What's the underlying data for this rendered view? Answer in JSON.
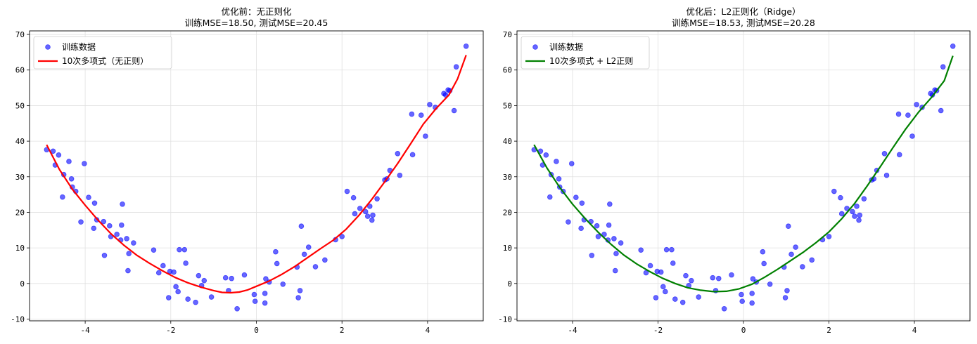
{
  "chart_data": [
    {
      "type": "scatter",
      "title": "优化前：无正则化",
      "subtitle": "训练MSE=18.50, 测试MSE=20.45",
      "xlabel": "",
      "ylabel": "",
      "xlim": [
        -5.3,
        5.3
      ],
      "ylim": [
        -10.5,
        71
      ],
      "xticks": [
        -4,
        -2,
        0,
        2,
        4
      ],
      "yticks": [
        -10,
        0,
        10,
        20,
        30,
        40,
        50,
        60,
        70
      ],
      "grid": true,
      "legend_position": "top-left",
      "series": [
        {
          "name": "训练数据",
          "kind": "scatter",
          "color": "#0000ff",
          "points": [
            [
              -4.9,
              37.6
            ],
            [
              -4.75,
              37.2
            ],
            [
              -4.7,
              33.3
            ],
            [
              -4.62,
              36.1
            ],
            [
              -4.53,
              24.3
            ],
            [
              -4.5,
              30.6
            ],
            [
              -4.38,
              34.3
            ],
            [
              -4.32,
              29.4
            ],
            [
              -4.3,
              27.1
            ],
            [
              -4.22,
              25.9
            ],
            [
              -4.1,
              17.3
            ],
            [
              -4.02,
              33.7
            ],
            [
              -3.92,
              24.2
            ],
            [
              -3.8,
              15.5
            ],
            [
              -3.78,
              22.6
            ],
            [
              -3.73,
              17.9
            ],
            [
              -3.57,
              17.4
            ],
            [
              -3.55,
              7.9
            ],
            [
              -3.43,
              16.2
            ],
            [
              -3.4,
              13.2
            ],
            [
              -3.26,
              13.8
            ],
            [
              -3.17,
              12.2
            ],
            [
              -3.15,
              16.4
            ],
            [
              -3.13,
              22.3
            ],
            [
              -3.03,
              12.6
            ],
            [
              -3.0,
              3.6
            ],
            [
              -2.98,
              8.4
            ],
            [
              -2.87,
              11.4
            ],
            [
              -2.4,
              9.4
            ],
            [
              -2.28,
              3.0
            ],
            [
              -2.18,
              5.0
            ],
            [
              -2.05,
              -4.0
            ],
            [
              -2.02,
              3.4
            ],
            [
              -1.93,
              3.2
            ],
            [
              -1.88,
              -0.9
            ],
            [
              -1.83,
              -2.3
            ],
            [
              -1.8,
              9.5
            ],
            [
              -1.68,
              9.5
            ],
            [
              -1.65,
              5.7
            ],
            [
              -1.6,
              -4.4
            ],
            [
              -1.42,
              -5.3
            ],
            [
              -1.35,
              2.2
            ],
            [
              -1.28,
              -0.6
            ],
            [
              -1.22,
              0.8
            ],
            [
              -1.05,
              -3.8
            ],
            [
              -0.72,
              1.6
            ],
            [
              -0.65,
              -2.0
            ],
            [
              -0.58,
              1.4
            ],
            [
              -0.45,
              -7.1
            ],
            [
              -0.28,
              2.4
            ],
            [
              -0.05,
              -3.1
            ],
            [
              -0.03,
              -5.0
            ],
            [
              0.2,
              -5.5
            ],
            [
              0.2,
              -2.8
            ],
            [
              0.22,
              1.3
            ],
            [
              0.3,
              0.4
            ],
            [
              0.45,
              8.9
            ],
            [
              0.48,
              5.6
            ],
            [
              0.62,
              -0.2
            ],
            [
              0.95,
              4.6
            ],
            [
              0.98,
              -4.0
            ],
            [
              1.02,
              -2.0
            ],
            [
              1.05,
              16.1
            ],
            [
              1.12,
              8.2
            ],
            [
              1.22,
              10.2
            ],
            [
              1.38,
              4.7
            ],
            [
              1.6,
              6.6
            ],
            [
              1.85,
              12.3
            ],
            [
              2.0,
              13.2
            ],
            [
              2.12,
              25.9
            ],
            [
              2.27,
              24.1
            ],
            [
              2.3,
              19.6
            ],
            [
              2.42,
              21.1
            ],
            [
              2.55,
              20.2
            ],
            [
              2.6,
              18.9
            ],
            [
              2.65,
              21.7
            ],
            [
              2.7,
              17.8
            ],
            [
              2.72,
              19.2
            ],
            [
              2.82,
              23.8
            ],
            [
              3.0,
              29.1
            ],
            [
              3.05,
              29.4
            ],
            [
              3.12,
              31.8
            ],
            [
              3.3,
              36.5
            ],
            [
              3.35,
              30.4
            ],
            [
              3.63,
              47.6
            ],
            [
              3.65,
              36.2
            ],
            [
              3.85,
              47.3
            ],
            [
              3.95,
              41.4
            ],
            [
              4.05,
              50.3
            ],
            [
              4.18,
              49.5
            ],
            [
              4.38,
              53.4
            ],
            [
              4.42,
              53.0
            ],
            [
              4.48,
              54.4
            ],
            [
              4.52,
              54.2
            ],
            [
              4.62,
              48.6
            ],
            [
              4.67,
              60.9
            ],
            [
              4.9,
              66.7
            ]
          ]
        },
        {
          "name": "10次多项式（无正则）",
          "kind": "line",
          "color": "#ff0000",
          "points": [
            [
              -4.9,
              39.0
            ],
            [
              -4.6,
              32.0
            ],
            [
              -4.3,
              26.5
            ],
            [
              -4.0,
              22.0
            ],
            [
              -3.7,
              17.8
            ],
            [
              -3.4,
              14.0
            ],
            [
              -3.1,
              10.8
            ],
            [
              -2.8,
              8.0
            ],
            [
              -2.5,
              5.7
            ],
            [
              -2.2,
              3.6
            ],
            [
              -1.9,
              1.7
            ],
            [
              -1.6,
              0.2
            ],
            [
              -1.3,
              -1.0
            ],
            [
              -1.0,
              -2.0
            ],
            [
              -0.8,
              -2.5
            ],
            [
              -0.6,
              -2.6
            ],
            [
              -0.4,
              -2.4
            ],
            [
              -0.2,
              -1.8
            ],
            [
              0.0,
              -0.8
            ],
            [
              0.3,
              0.7
            ],
            [
              0.6,
              2.6
            ],
            [
              0.9,
              4.8
            ],
            [
              1.2,
              7.3
            ],
            [
              1.5,
              9.8
            ],
            [
              1.8,
              12.2
            ],
            [
              2.1,
              15.3
            ],
            [
              2.4,
              19.2
            ],
            [
              2.7,
              23.7
            ],
            [
              3.0,
              28.6
            ],
            [
              3.3,
              33.7
            ],
            [
              3.6,
              39.2
            ],
            [
              3.9,
              44.8
            ],
            [
              4.2,
              49.2
            ],
            [
              4.5,
              53.0
            ],
            [
              4.7,
              57.5
            ],
            [
              4.9,
              64.2
            ]
          ]
        }
      ]
    },
    {
      "type": "scatter",
      "title": "优化后：L2正则化（Ridge）",
      "subtitle": "训练MSE=18.53, 测试MSE=20.28",
      "xlabel": "",
      "ylabel": "",
      "xlim": [
        -5.3,
        5.3
      ],
      "ylim": [
        -10.5,
        71
      ],
      "xticks": [
        -4,
        -2,
        0,
        2,
        4
      ],
      "yticks": [
        -10,
        0,
        10,
        20,
        30,
        40,
        50,
        60,
        70
      ],
      "grid": true,
      "legend_position": "top-left",
      "series": [
        {
          "name": "训练数据",
          "kind": "scatter",
          "color": "#0000ff",
          "points": [
            [
              -4.9,
              37.6
            ],
            [
              -4.75,
              37.2
            ],
            [
              -4.7,
              33.3
            ],
            [
              -4.62,
              36.1
            ],
            [
              -4.53,
              24.3
            ],
            [
              -4.5,
              30.6
            ],
            [
              -4.38,
              34.3
            ],
            [
              -4.32,
              29.4
            ],
            [
              -4.3,
              27.1
            ],
            [
              -4.22,
              25.9
            ],
            [
              -4.1,
              17.3
            ],
            [
              -4.02,
              33.7
            ],
            [
              -3.92,
              24.2
            ],
            [
              -3.8,
              15.5
            ],
            [
              -3.78,
              22.6
            ],
            [
              -3.73,
              17.9
            ],
            [
              -3.57,
              17.4
            ],
            [
              -3.55,
              7.9
            ],
            [
              -3.43,
              16.2
            ],
            [
              -3.4,
              13.2
            ],
            [
              -3.26,
              13.8
            ],
            [
              -3.17,
              12.2
            ],
            [
              -3.15,
              16.4
            ],
            [
              -3.13,
              22.3
            ],
            [
              -3.03,
              12.6
            ],
            [
              -3.0,
              3.6
            ],
            [
              -2.98,
              8.4
            ],
            [
              -2.87,
              11.4
            ],
            [
              -2.4,
              9.4
            ],
            [
              -2.28,
              3.0
            ],
            [
              -2.18,
              5.0
            ],
            [
              -2.05,
              -4.0
            ],
            [
              -2.02,
              3.4
            ],
            [
              -1.93,
              3.2
            ],
            [
              -1.88,
              -0.9
            ],
            [
              -1.83,
              -2.3
            ],
            [
              -1.8,
              9.5
            ],
            [
              -1.68,
              9.5
            ],
            [
              -1.65,
              5.7
            ],
            [
              -1.6,
              -4.4
            ],
            [
              -1.42,
              -5.3
            ],
            [
              -1.35,
              2.2
            ],
            [
              -1.28,
              -0.6
            ],
            [
              -1.22,
              0.8
            ],
            [
              -1.05,
              -3.8
            ],
            [
              -0.72,
              1.6
            ],
            [
              -0.65,
              -2.0
            ],
            [
              -0.58,
              1.4
            ],
            [
              -0.45,
              -7.1
            ],
            [
              -0.28,
              2.4
            ],
            [
              -0.05,
              -3.1
            ],
            [
              -0.03,
              -5.0
            ],
            [
              0.2,
              -5.5
            ],
            [
              0.2,
              -2.8
            ],
            [
              0.22,
              1.3
            ],
            [
              0.3,
              0.4
            ],
            [
              0.45,
              8.9
            ],
            [
              0.48,
              5.6
            ],
            [
              0.62,
              -0.2
            ],
            [
              0.95,
              4.6
            ],
            [
              0.98,
              -4.0
            ],
            [
              1.02,
              -2.0
            ],
            [
              1.05,
              16.1
            ],
            [
              1.12,
              8.2
            ],
            [
              1.22,
              10.2
            ],
            [
              1.38,
              4.7
            ],
            [
              1.6,
              6.6
            ],
            [
              1.85,
              12.3
            ],
            [
              2.0,
              13.2
            ],
            [
              2.12,
              25.9
            ],
            [
              2.27,
              24.1
            ],
            [
              2.3,
              19.6
            ],
            [
              2.42,
              21.1
            ],
            [
              2.55,
              20.2
            ],
            [
              2.6,
              18.9
            ],
            [
              2.65,
              21.7
            ],
            [
              2.7,
              17.8
            ],
            [
              2.72,
              19.2
            ],
            [
              2.82,
              23.8
            ],
            [
              3.0,
              29.1
            ],
            [
              3.05,
              29.4
            ],
            [
              3.12,
              31.8
            ],
            [
              3.3,
              36.5
            ],
            [
              3.35,
              30.4
            ],
            [
              3.63,
              47.6
            ],
            [
              3.65,
              36.2
            ],
            [
              3.85,
              47.3
            ],
            [
              3.95,
              41.4
            ],
            [
              4.05,
              50.3
            ],
            [
              4.18,
              49.5
            ],
            [
              4.38,
              53.4
            ],
            [
              4.42,
              53.0
            ],
            [
              4.48,
              54.4
            ],
            [
              4.52,
              54.2
            ],
            [
              4.62,
              48.6
            ],
            [
              4.67,
              60.9
            ],
            [
              4.9,
              66.7
            ]
          ]
        },
        {
          "name": "10次多项式 + L2正则",
          "kind": "line",
          "color": "#008000",
          "points": [
            [
              -4.9,
              39.0
            ],
            [
              -4.6,
              32.5
            ],
            [
              -4.3,
              27.0
            ],
            [
              -4.0,
              22.3
            ],
            [
              -3.7,
              18.2
            ],
            [
              -3.4,
              14.4
            ],
            [
              -3.1,
              11.0
            ],
            [
              -2.8,
              8.0
            ],
            [
              -2.5,
              5.5
            ],
            [
              -2.2,
              3.4
            ],
            [
              -1.9,
              1.5
            ],
            [
              -1.6,
              0.0
            ],
            [
              -1.3,
              -1.2
            ],
            [
              -1.0,
              -1.9
            ],
            [
              -0.7,
              -2.3
            ],
            [
              -0.4,
              -2.2
            ],
            [
              -0.1,
              -1.5
            ],
            [
              0.2,
              -0.2
            ],
            [
              0.5,
              1.8
            ],
            [
              0.8,
              4.0
            ],
            [
              1.1,
              6.4
            ],
            [
              1.4,
              8.8
            ],
            [
              1.7,
              11.5
            ],
            [
              2.0,
              14.5
            ],
            [
              2.3,
              18.2
            ],
            [
              2.6,
              22.5
            ],
            [
              2.9,
              27.5
            ],
            [
              3.2,
              32.8
            ],
            [
              3.5,
              38.2
            ],
            [
              3.8,
              43.5
            ],
            [
              4.1,
              48.2
            ],
            [
              4.4,
              52.3
            ],
            [
              4.7,
              57.0
            ],
            [
              4.9,
              64.0
            ]
          ]
        }
      ]
    }
  ]
}
